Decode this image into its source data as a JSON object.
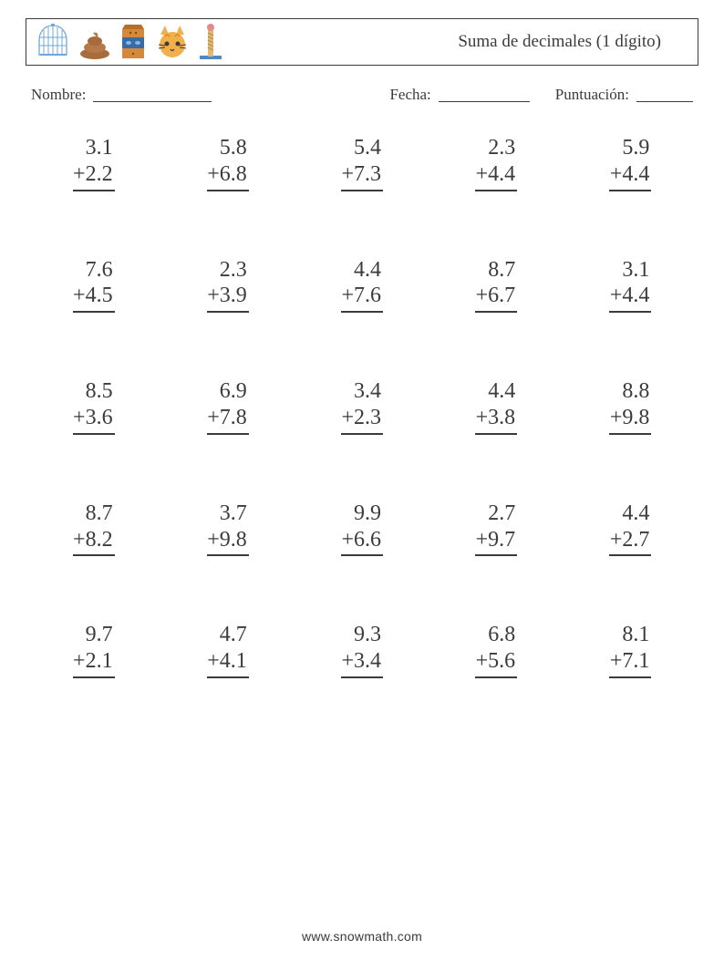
{
  "colors": {
    "text": "#3b3b3b",
    "border": "#3b3b3b",
    "background": "#ffffff"
  },
  "header": {
    "title": "Suma de decimales (1 dígito)",
    "icons": [
      "birdcage-icon",
      "poop-icon",
      "pet-food-bag-icon",
      "cat-face-icon",
      "scratch-post-icon"
    ]
  },
  "info": {
    "name_label": "Nombre:",
    "date_label": "Fecha:",
    "score_label": "Puntuación:"
  },
  "worksheet": {
    "type": "math-worksheet",
    "operator": "+",
    "columns": 5,
    "font_size_pt": 18,
    "problems": [
      {
        "a": "3.1",
        "b": "2.2"
      },
      {
        "a": "5.8",
        "b": "6.8"
      },
      {
        "a": "5.4",
        "b": "7.3"
      },
      {
        "a": "2.3",
        "b": "4.4"
      },
      {
        "a": "5.9",
        "b": "4.4"
      },
      {
        "a": "7.6",
        "b": "4.5"
      },
      {
        "a": "2.3",
        "b": "3.9"
      },
      {
        "a": "4.4",
        "b": "7.6"
      },
      {
        "a": "8.7",
        "b": "6.7"
      },
      {
        "a": "3.1",
        "b": "4.4"
      },
      {
        "a": "8.5",
        "b": "3.6"
      },
      {
        "a": "6.9",
        "b": "7.8"
      },
      {
        "a": "3.4",
        "b": "2.3"
      },
      {
        "a": "4.4",
        "b": "3.8"
      },
      {
        "a": "8.8",
        "b": "9.8"
      },
      {
        "a": "8.7",
        "b": "8.2"
      },
      {
        "a": "3.7",
        "b": "9.8"
      },
      {
        "a": "9.9",
        "b": "6.6"
      },
      {
        "a": "2.7",
        "b": "9.7"
      },
      {
        "a": "4.4",
        "b": "2.7"
      },
      {
        "a": "9.7",
        "b": "2.1"
      },
      {
        "a": "4.7",
        "b": "4.1"
      },
      {
        "a": "9.3",
        "b": "3.4"
      },
      {
        "a": "6.8",
        "b": "5.6"
      },
      {
        "a": "8.1",
        "b": "7.1"
      }
    ]
  },
  "footer": {
    "url": "www.snowmath.com"
  }
}
